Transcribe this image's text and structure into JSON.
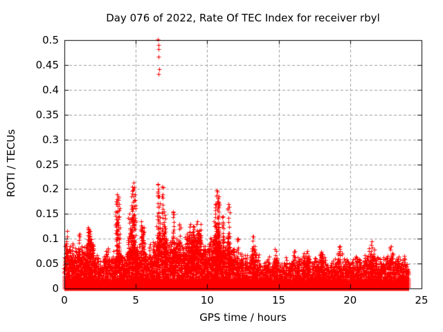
{
  "chart_data": {
    "type": "scatter",
    "title": "Day 076 of 2022, Rate Of TEC Index for receiver rbyl",
    "xlabel": "GPS time / hours",
    "ylabel": "ROTI / TECUs",
    "xlim": [
      0,
      25
    ],
    "ylim": [
      0,
      0.5
    ],
    "xticks": [
      0,
      5,
      10,
      15,
      20,
      25
    ],
    "yticks": [
      0,
      0.05,
      0.1,
      0.15,
      0.2,
      0.25,
      0.3,
      0.35,
      0.4,
      0.45,
      0.5
    ],
    "grid": true,
    "legend_position": "none",
    "marker": "plus",
    "marker_color": "#ff0000",
    "grid_color": "#9b9b9b",
    "axis_color": "#000000",
    "background_color": "#ffffff",
    "data_hours_range": [
      0,
      24.1
    ],
    "dense_band": {
      "typical_max": 0.03,
      "description": "solid mass of ROTI points between 0 and ~0.03 TECUs across all 24 hours"
    },
    "envelope": [
      [
        0,
        0.065
      ],
      [
        0.25,
        0.115
      ],
      [
        0.5,
        0.09
      ],
      [
        0.75,
        0.075
      ],
      [
        1,
        0.11
      ],
      [
        1.25,
        0.08
      ],
      [
        1.5,
        0.095
      ],
      [
        1.75,
        0.12
      ],
      [
        2,
        0.085
      ],
      [
        2.25,
        0.065
      ],
      [
        2.5,
        0.06
      ],
      [
        2.75,
        0.06
      ],
      [
        3,
        0.075
      ],
      [
        3.25,
        0.065
      ],
      [
        3.5,
        0.07
      ],
      [
        3.75,
        0.1
      ],
      [
        4,
        0.09
      ],
      [
        4.25,
        0.07
      ],
      [
        4.5,
        0.1
      ],
      [
        4.75,
        0.13
      ],
      [
        5,
        0.11
      ],
      [
        5.25,
        0.08
      ],
      [
        5.5,
        0.13
      ],
      [
        5.75,
        0.075
      ],
      [
        6,
        0.08
      ],
      [
        6.25,
        0.095
      ],
      [
        6.5,
        0.12
      ],
      [
        6.75,
        0.13
      ],
      [
        7,
        0.12
      ],
      [
        7.25,
        0.09
      ],
      [
        7.5,
        0.12
      ],
      [
        7.75,
        0.095
      ],
      [
        8,
        0.11
      ],
      [
        8.25,
        0.085
      ],
      [
        8.5,
        0.095
      ],
      [
        8.75,
        0.12
      ],
      [
        9,
        0.115
      ],
      [
        9.25,
        0.12
      ],
      [
        9.5,
        0.125
      ],
      [
        9.75,
        0.09
      ],
      [
        10,
        0.1
      ],
      [
        10.25,
        0.095
      ],
      [
        10.5,
        0.13
      ],
      [
        10.75,
        0.14
      ],
      [
        11,
        0.12
      ],
      [
        11.25,
        0.095
      ],
      [
        11.5,
        0.12
      ],
      [
        11.75,
        0.08
      ],
      [
        12,
        0.09
      ],
      [
        12.25,
        0.07
      ],
      [
        12.5,
        0.065
      ],
      [
        12.75,
        0.07
      ],
      [
        13,
        0.075
      ],
      [
        13.25,
        0.09
      ],
      [
        13.5,
        0.065
      ],
      [
        13.75,
        0.055
      ],
      [
        14,
        0.05
      ],
      [
        14.25,
        0.055
      ],
      [
        14.5,
        0.06
      ],
      [
        14.75,
        0.07
      ],
      [
        15,
        0.055
      ],
      [
        15.25,
        0.05
      ],
      [
        15.5,
        0.06
      ],
      [
        15.75,
        0.055
      ],
      [
        16,
        0.065
      ],
      [
        16.25,
        0.06
      ],
      [
        16.5,
        0.055
      ],
      [
        16.75,
        0.065
      ],
      [
        17,
        0.065
      ],
      [
        17.25,
        0.055
      ],
      [
        17.5,
        0.06
      ],
      [
        17.75,
        0.065
      ],
      [
        18,
        0.07
      ],
      [
        18.25,
        0.06
      ],
      [
        18.5,
        0.055
      ],
      [
        18.75,
        0.06
      ],
      [
        19,
        0.06
      ],
      [
        19.25,
        0.07
      ],
      [
        19.5,
        0.065
      ],
      [
        19.75,
        0.055
      ],
      [
        20,
        0.06
      ],
      [
        20.25,
        0.055
      ],
      [
        20.5,
        0.06
      ],
      [
        20.75,
        0.06
      ],
      [
        21,
        0.065
      ],
      [
        21.25,
        0.07
      ],
      [
        21.5,
        0.08
      ],
      [
        21.75,
        0.065
      ],
      [
        22,
        0.06
      ],
      [
        22.25,
        0.06
      ],
      [
        22.5,
        0.065
      ],
      [
        22.75,
        0.08
      ],
      [
        23,
        0.07
      ],
      [
        23.25,
        0.06
      ],
      [
        23.5,
        0.055
      ],
      [
        23.75,
        0.06
      ],
      [
        24,
        0.055
      ],
      [
        24.1,
        0.05
      ]
    ],
    "spikes": [
      [
        0.2,
        0.115
      ],
      [
        1.05,
        0.11
      ],
      [
        1.7,
        0.12
      ],
      [
        1.8,
        0.115
      ],
      [
        3.6,
        0.155
      ],
      [
        3.7,
        0.19
      ],
      [
        3.8,
        0.185
      ],
      [
        4.55,
        0.15
      ],
      [
        4.75,
        0.205
      ],
      [
        4.85,
        0.213
      ],
      [
        4.95,
        0.19
      ],
      [
        5.4,
        0.135
      ],
      [
        6.55,
        0.21
      ],
      [
        6.65,
        0.185
      ],
      [
        6.85,
        0.205
      ],
      [
        7,
        0.155
      ],
      [
        7.6,
        0.155
      ],
      [
        8.05,
        0.13
      ],
      [
        8.8,
        0.13
      ],
      [
        9,
        0.125
      ],
      [
        9.3,
        0.135
      ],
      [
        9.55,
        0.13
      ],
      [
        10.55,
        0.17
      ],
      [
        10.7,
        0.195
      ],
      [
        10.8,
        0.185
      ],
      [
        11.1,
        0.145
      ],
      [
        11.5,
        0.17
      ],
      [
        12.1,
        0.1
      ],
      [
        13.2,
        0.105
      ],
      [
        14.75,
        0.08
      ],
      [
        16.1,
        0.075
      ],
      [
        17,
        0.075
      ],
      [
        18,
        0.07
      ],
      [
        19.3,
        0.085
      ],
      [
        21.5,
        0.095
      ],
      [
        22.85,
        0.085
      ]
    ],
    "outliers": [
      [
        6.55,
        0.502
      ],
      [
        6.57,
        0.49
      ],
      [
        6.58,
        0.482
      ],
      [
        6.6,
        0.467
      ],
      [
        6.62,
        0.441
      ],
      [
        6.61,
        0.432
      ]
    ]
  }
}
